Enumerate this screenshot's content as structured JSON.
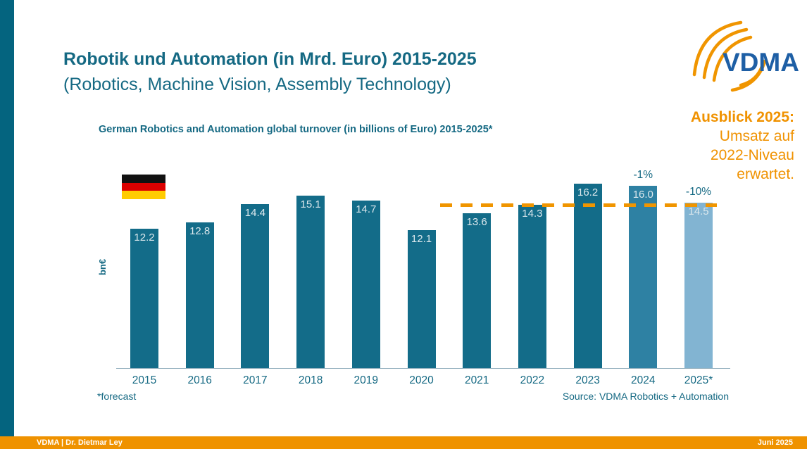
{
  "slide": {
    "title_line1": "Robotik und Automation (in Mrd. Euro) 2015-2025",
    "title_line2": "(Robotics, Machine Vision, Assembly Technology)",
    "logo_text": "VDMA",
    "flag_icon": "germany-flag",
    "outlook": {
      "heading": "Ausblick 2025:",
      "lines": [
        "Umsatz auf",
        "2022-Niveau",
        "erwartet."
      ]
    },
    "footnote": "*forecast",
    "source": "Source: VDMA Robotics + Automation",
    "footer": {
      "left": "VDMA | Dr. Dietmar Ley",
      "right": "Juni 2025"
    }
  },
  "chart_data": {
    "type": "bar",
    "title": "German Robotics and Automation global turnover (in billions of Euro) 2015-2025*",
    "ylabel": "bn€",
    "xlabel": "",
    "ylim": [
      0,
      18
    ],
    "grid": false,
    "categories": [
      "2015",
      "2016",
      "2017",
      "2018",
      "2019",
      "2020",
      "2021",
      "2022",
      "2023",
      "2024",
      "2025*"
    ],
    "values": [
      12.2,
      12.8,
      14.4,
      15.1,
      14.7,
      12.1,
      13.6,
      14.3,
      16.2,
      16.0,
      14.5
    ],
    "bar_colors": [
      "#136C89",
      "#136C89",
      "#136C89",
      "#136C89",
      "#136C89",
      "#136C89",
      "#136C89",
      "#136C89",
      "#136C89",
      "#2E81A3",
      "#82B4D2"
    ],
    "annotations": [
      {
        "category": "2024",
        "text": "-1%"
      },
      {
        "category": "2025*",
        "text": "-10%"
      }
    ],
    "reference_line": {
      "value": 14.3,
      "style": "dashed",
      "color": "#F09500"
    }
  },
  "colors": {
    "teal_text": "#156983",
    "bar_teal": "#136C89",
    "bar_2024": "#2E81A3",
    "bar_2025": "#82B4D2",
    "accent_orange": "#F09200",
    "logo_blue": "#1E5FA5",
    "sidebar_teal": "#04647F"
  }
}
